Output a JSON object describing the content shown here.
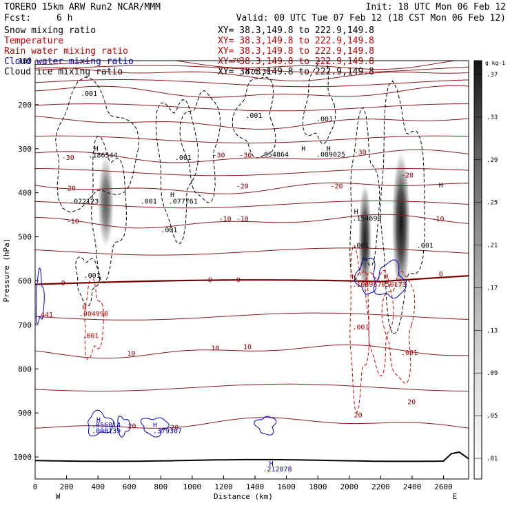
{
  "header": {
    "line1_left": "TORERO  15km ARW   Run2     NCAR/MMM",
    "line1_right": "Init: 18 UTC Mon 06 Feb 12",
    "fcst_label": "Fcst:",
    "fcst_value": "6 h",
    "valid": "Valid: 00 UTC Tue 07 Feb 12 (18 CST Mon 06 Feb 12)"
  },
  "legend": [
    {
      "name": "Snow mixing ratio",
      "xy": "XY=  38.3,149.8 to 222.9,149.8",
      "color": "#000000"
    },
    {
      "name": "Temperature",
      "xy": "XY=  38.3,149.8 to 222.9,149.8",
      "color": "#c00000"
    },
    {
      "name": "Rain water mixing ratio",
      "xy": "XY=  38.3,149.8 to 222.9,149.8",
      "color": "#c00000"
    },
    {
      "name": "Cloud water mixing ratio",
      "xy": "XY=  38.3,149.8 to 222.9,149.8",
      "color": "#0000c0"
    },
    {
      "name": "Cloud ice mixing ratio",
      "xy": "XY=  38.3,149.8 to 222.9,149.8",
      "color": "#000000"
    }
  ],
  "colors": {
    "temperature": "#8b1a1a",
    "zero_isotherm": "#7a0000",
    "rain": "#d00000",
    "cloud_water": "#0000c8",
    "ice": "#000000",
    "terrain": "#000000"
  },
  "chart_data": {
    "type": "cross-section",
    "xlabel": "Distance (km)",
    "ylabel": "Pressure (hPa)",
    "xlim": [
      0,
      2760
    ],
    "ylim": [
      1050,
      100
    ],
    "xticks": [
      "0",
      "200",
      "400",
      "600",
      "800",
      "1000",
      "1200",
      "1400",
      "1600",
      "1800",
      "2000",
      "2200",
      "2400",
      "2600"
    ],
    "yticks": [
      "100",
      "200",
      "300",
      "400",
      "500",
      "600",
      "700",
      "800",
      "900",
      "1000"
    ],
    "x_end_labels": {
      "left": "W",
      "right": "E"
    },
    "colorbar": {
      "units": "g kg-1",
      "labels": [
        ".01",
        ".05",
        ".09",
        ".13",
        ".17",
        ".21",
        ".25",
        ".29",
        ".33",
        ".37"
      ]
    },
    "temperature_contours_C": [
      -70,
      -60,
      -50,
      -40,
      -30,
      -20,
      -10,
      0,
      10,
      20
    ],
    "temperature_labels": [
      {
        "text": "-70",
        "x": 1230,
        "p": 105
      },
      {
        "text": "-30",
        "x": 170,
        "p": 325
      },
      {
        "text": "-30",
        "x": 1130,
        "p": 320
      },
      {
        "text": "-30",
        "x": 1300,
        "p": 320
      },
      {
        "text": "-30",
        "x": 2030,
        "p": 313
      },
      {
        "text": "-20",
        "x": 180,
        "p": 395
      },
      {
        "text": "-20",
        "x": 1280,
        "p": 390
      },
      {
        "text": "-20",
        "x": 1880,
        "p": 390
      },
      {
        "text": "-20",
        "x": 2330,
        "p": 365
      },
      {
        "text": "-10",
        "x": 200,
        "p": 470
      },
      {
        "text": "-10",
        "x": 1170,
        "p": 465
      },
      {
        "text": "-10",
        "x": 1280,
        "p": 465
      },
      {
        "text": "-10",
        "x": 2525,
        "p": 465
      },
      {
        "text": "0",
        "x": 165,
        "p": 610
      },
      {
        "text": "0",
        "x": 1100,
        "p": 603
      },
      {
        "text": "0",
        "x": 1280,
        "p": 603
      },
      {
        "text": "0",
        "x": 2570,
        "p": 590
      },
      {
        "text": "10",
        "x": 585,
        "p": 770
      },
      {
        "text": "10",
        "x": 1120,
        "p": 758
      },
      {
        "text": "10",
        "x": 1325,
        "p": 755
      },
      {
        "text": "20",
        "x": 590,
        "p": 935
      },
      {
        "text": "20",
        "x": 860,
        "p": 938
      },
      {
        "text": "20",
        "x": 2030,
        "p": 910
      },
      {
        "text": "20",
        "x": 2370,
        "p": 880
      }
    ],
    "ice_labels": [
      {
        "text": ".001",
        "x": 290,
        "p": 180
      },
      {
        "text": ".001",
        "x": 1340,
        "p": 230
      },
      {
        "text": ".001",
        "x": 1790,
        "p": 238
      },
      {
        "text": "H",
        "x": 375,
        "p": 305
      },
      {
        "text": ".186544",
        "x": 340,
        "p": 320
      },
      {
        "text": ".001",
        "x": 890,
        "p": 325
      },
      {
        "text": "H",
        "x": 1695,
        "p": 305
      },
      {
        "text": ".054864",
        "x": 1430,
        "p": 318
      },
      {
        "text": "H",
        "x": 1855,
        "p": 305
      },
      {
        "text": ".089025",
        "x": 1790,
        "p": 318
      },
      {
        "text": "H",
        "x": 860,
        "p": 410
      },
      {
        "text": ".077761",
        "x": 850,
        "p": 425
      },
      {
        "text": ".072123",
        "x": 220,
        "p": 425
      },
      {
        "text": ".001",
        "x": 670,
        "p": 425
      },
      {
        "text": ".001",
        "x": 800,
        "p": 490
      },
      {
        "text": "H",
        "x": 2030,
        "p": 448
      },
      {
        "text": ".154699",
        "x": 2020,
        "p": 463
      },
      {
        "text": ".001",
        "x": 2020,
        "p": 525
      },
      {
        "text": ".001",
        "x": 2430,
        "p": 525
      },
      {
        "text": ".001",
        "x": 310,
        "p": 593
      },
      {
        "text": "H",
        "x": 2570,
        "p": 388
      },
      {
        "text": "476.30",
        "x": 1340,
        "p": 130
      }
    ],
    "rain_labels": [
      {
        "text": "H",
        "x": 300,
        "p": 665
      },
      {
        "text": ".004998",
        "x": 280,
        "p": 680
      },
      {
        "text": ".001",
        "x": 300,
        "p": 730
      },
      {
        "text": ".001",
        "x": 2020,
        "p": 710
      },
      {
        "text": ".001",
        "x": 2330,
        "p": 768
      },
      {
        "text": ".108957050173",
        "x": 2020,
        "p": 613
      },
      {
        "text": "H",
        "x": 2015,
        "p": 596
      },
      {
        "text": "H",
        "x": 2220,
        "p": 596
      },
      {
        "text": ".441",
        "x": 0,
        "p": 682
      }
    ],
    "cloud_water_labels": [
      {
        "text": "H",
        "x": 390,
        "p": 921
      },
      {
        "text": ".856814",
        "x": 360,
        "p": 933
      },
      {
        "text": ".000139",
        "x": 360,
        "p": 946
      },
      {
        "text": "H",
        "x": 750,
        "p": 933
      },
      {
        "text": ".379307",
        "x": 750,
        "p": 946
      },
      {
        "text": "H",
        "x": 1490,
        "p": 1020
      },
      {
        "text": ".212878",
        "x": 1450,
        "p": 1033
      }
    ],
    "maxima": {
      "ice_max_1": ".186544",
      "ice_max_2": ".154699",
      "snow_core_x_km": [
        450,
        2100,
        2330
      ]
    }
  }
}
